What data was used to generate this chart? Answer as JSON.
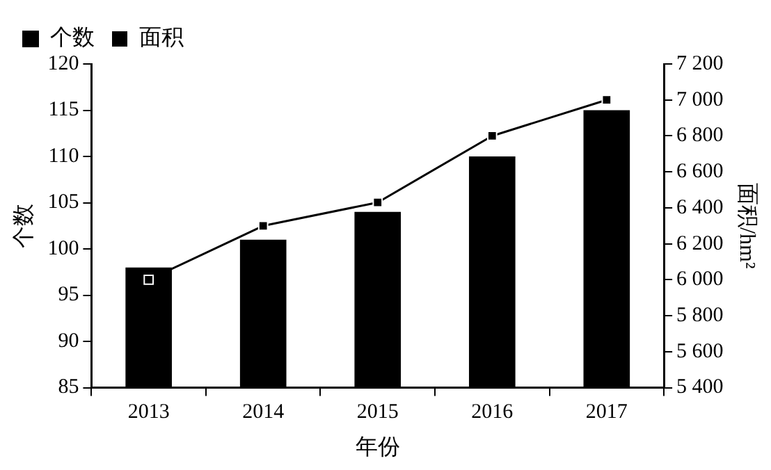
{
  "chart_data": {
    "type": "bar",
    "categories": [
      "2013",
      "2014",
      "2015",
      "2016",
      "2017"
    ],
    "series": [
      {
        "name": "个数",
        "color": "#000000",
        "values": [
          98,
          101,
          104,
          110,
          115
        ]
      },
      {
        "name": "面积",
        "type": "line",
        "axis": "y2",
        "color": "#000000",
        "values": [
          6000,
          6300,
          6430,
          6800,
          7000
        ]
      }
    ],
    "xlabel": "年份",
    "ylabel": "个数",
    "y2label": "面积/hm²",
    "ylim": [
      85,
      120
    ],
    "yticks": [
      85,
      90,
      95,
      100,
      105,
      110,
      115,
      120
    ],
    "y2lim": [
      5400,
      7200
    ],
    "y2ticks": [
      {
        "value": 5400,
        "label": "5 400"
      },
      {
        "value": 5600,
        "label": "5 600"
      },
      {
        "value": 5800,
        "label": "5 800"
      },
      {
        "value": 6000,
        "label": "6 000"
      },
      {
        "value": 6200,
        "label": "6 200"
      },
      {
        "value": 6400,
        "label": "6 400"
      },
      {
        "value": 6600,
        "label": "6 600"
      },
      {
        "value": 6800,
        "label": "6 800"
      },
      {
        "value": 7000,
        "label": "7 000"
      },
      {
        "value": 7200,
        "label": "7 200"
      }
    ],
    "legend": "top left",
    "marker": "square",
    "grid": false
  }
}
